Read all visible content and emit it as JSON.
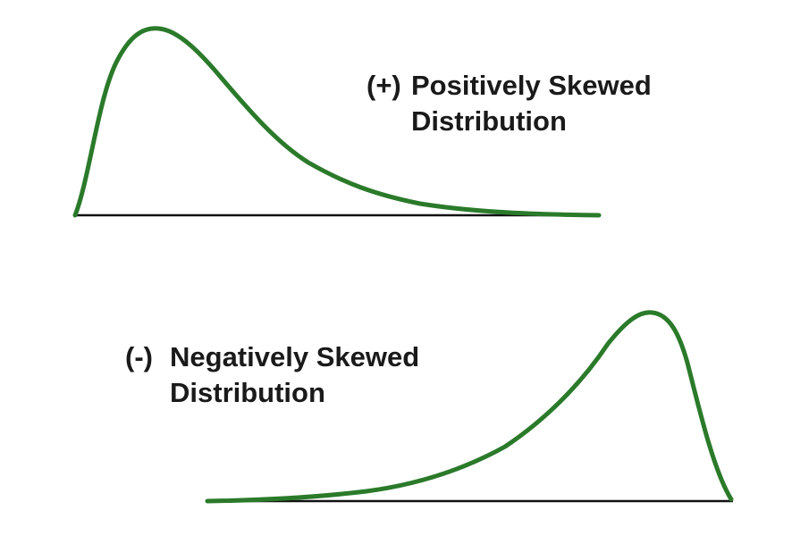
{
  "colors": {
    "curve": "#2a7a2a",
    "baseline": "#111111",
    "text": "#1a1a1a",
    "background": "#ffffff"
  },
  "positive": {
    "sign": "(+)",
    "line1": "Positively Skewed",
    "line2": "Distribution"
  },
  "negative": {
    "sign": "(-)",
    "line1": "Negatively Skewed",
    "line2": "Distribution"
  }
}
